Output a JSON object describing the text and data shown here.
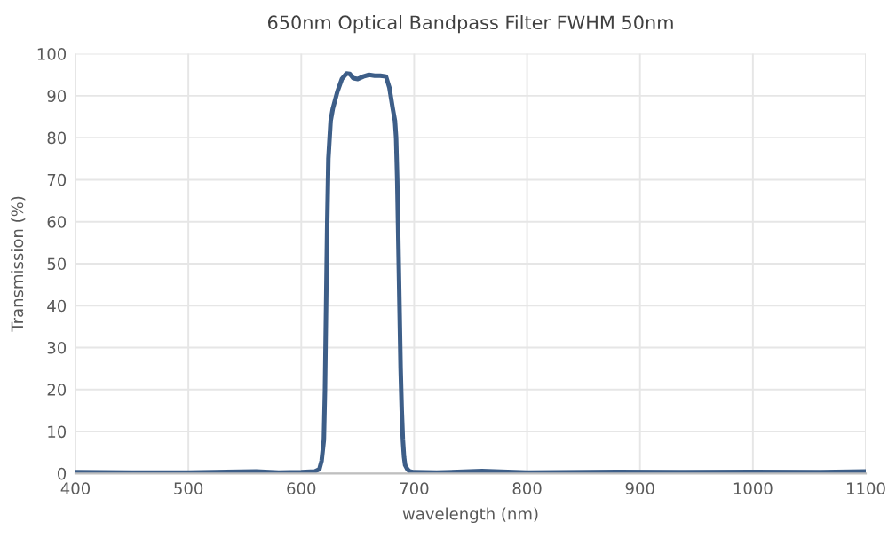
{
  "chart_data": {
    "type": "line",
    "title": "650nm Optical Bandpass Filter FWHM 50nm",
    "xlabel": "wavelength (nm)",
    "ylabel": "Transmission (%)",
    "xlim": [
      400,
      1100
    ],
    "xticks": [
      400,
      500,
      600,
      700,
      800,
      900,
      1000,
      1100
    ],
    "ylim": [
      0,
      100
    ],
    "yticks": [
      0,
      10,
      20,
      30,
      40,
      50,
      60,
      70,
      80,
      90,
      100
    ],
    "grid": true,
    "series": [
      {
        "color": "#3d5e88",
        "x": [
          400,
          450,
          500,
          560,
          580,
          600,
          612,
          616,
          618,
          620,
          621,
          622,
          623,
          624,
          626,
          628,
          632,
          636,
          640,
          643,
          646,
          650,
          655,
          660,
          665,
          670,
          675,
          678,
          681,
          683,
          684,
          685,
          686,
          687,
          688,
          689,
          690,
          691,
          692,
          694,
          696,
          700,
          720,
          760,
          800,
          880,
          940,
          1000,
          1060,
          1100
        ],
        "values": [
          0.3,
          0.2,
          0.2,
          0.5,
          0.2,
          0.3,
          0.5,
          1,
          3,
          8,
          20,
          40,
          60,
          75,
          84,
          87,
          91,
          94,
          95.3,
          95.2,
          94.2,
          94.0,
          94.6,
          95.0,
          94.8,
          94.8,
          94.6,
          92,
          87,
          84,
          80,
          70,
          55,
          40,
          25,
          15,
          8,
          4,
          2,
          1,
          0.5,
          0.3,
          0.2,
          0.6,
          0.2,
          0.4,
          0.3,
          0.4,
          0.3,
          0.5
        ]
      }
    ]
  }
}
